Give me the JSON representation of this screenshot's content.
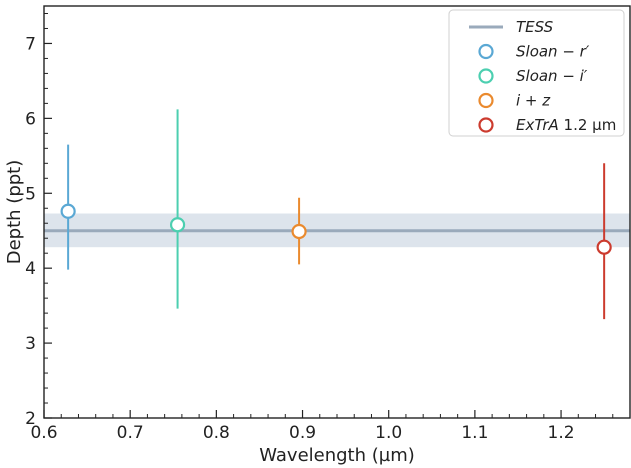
{
  "chart_data": {
    "type": "scatter",
    "title": "",
    "xlabel": "Wavelength (µm)",
    "ylabel": "Depth (ppt)",
    "xlim": [
      0.6,
      1.28
    ],
    "ylim": [
      2.0,
      7.5
    ],
    "x_ticks": [
      {
        "value": 0.6,
        "label": "0.6"
      },
      {
        "value": 0.7,
        "label": "0.7"
      },
      {
        "value": 0.8,
        "label": "0.8"
      },
      {
        "value": 0.9,
        "label": "0.9"
      },
      {
        "value": 1.0,
        "label": "1.0"
      },
      {
        "value": 1.1,
        "label": "1.1"
      },
      {
        "value": 1.2,
        "label": "1.2"
      }
    ],
    "y_ticks": [
      {
        "value": 2,
        "label": "2"
      },
      {
        "value": 3,
        "label": "3"
      },
      {
        "value": 4,
        "label": "4"
      },
      {
        "value": 5,
        "label": "5"
      },
      {
        "value": 6,
        "label": "6"
      },
      {
        "value": 7,
        "label": "7"
      }
    ],
    "grid": false,
    "legend_position": "top-right",
    "reference": {
      "name": "TESS",
      "value": 4.5,
      "band": [
        4.28,
        4.73
      ],
      "line_color": "#9aaabb",
      "band_color": "#dde4ec"
    },
    "series": [
      {
        "name": "Sloan − r′",
        "legend_italic": "Sloan − r′",
        "legend_upright": "",
        "color": "#5aa8d4",
        "x": 0.628,
        "y": 4.76,
        "err_low": 0.78,
        "err_high": 0.89
      },
      {
        "name": "Sloan − i′",
        "legend_italic": "Sloan − i′",
        "legend_upright": "",
        "color": "#4ccfb0",
        "x": 0.755,
        "y": 4.58,
        "err_low": 1.12,
        "err_high": 1.54
      },
      {
        "name": "i + z",
        "legend_italic": "i + z",
        "legend_upright": "",
        "color": "#ea8a2e",
        "x": 0.896,
        "y": 4.49,
        "err_low": 0.44,
        "err_high": 0.45
      },
      {
        "name": "ExTrA 1.2 µm",
        "legend_italic": "ExTrA",
        "legend_upright": " 1.2 µm",
        "color": "#cc3b2e",
        "x": 1.25,
        "y": 4.28,
        "err_low": 0.96,
        "err_high": 1.12
      }
    ]
  }
}
